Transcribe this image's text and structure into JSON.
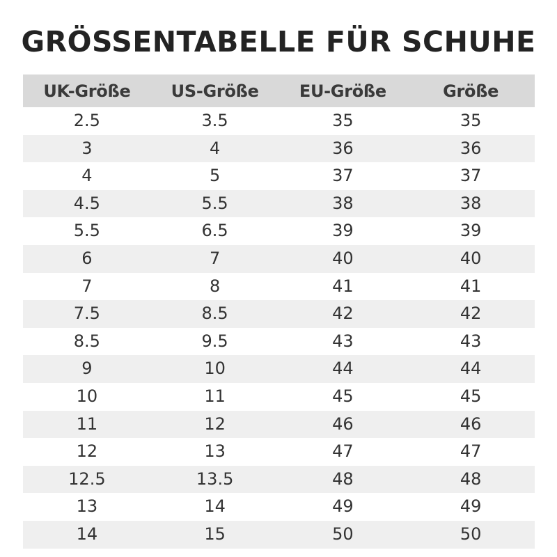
{
  "title": "GRÖSSENTABELLE FÜR SCHUHE",
  "table": {
    "headers": [
      "UK-Größe",
      "US-Größe",
      "EU-Größe",
      "Größe"
    ],
    "rows": [
      [
        "2.5",
        "3.5",
        "35",
        "35"
      ],
      [
        "3",
        "4",
        "36",
        "36"
      ],
      [
        "4",
        "5",
        "37",
        "37"
      ],
      [
        "4.5",
        "5.5",
        "38",
        "38"
      ],
      [
        "5.5",
        "6.5",
        "39",
        "39"
      ],
      [
        "6",
        "7",
        "40",
        "40"
      ],
      [
        "7",
        "8",
        "41",
        "41"
      ],
      [
        "7.5",
        "8.5",
        "42",
        "42"
      ],
      [
        "8.5",
        "9.5",
        "43",
        "43"
      ],
      [
        "9",
        "10",
        "44",
        "44"
      ],
      [
        "10",
        "11",
        "45",
        "45"
      ],
      [
        "11",
        "12",
        "46",
        "46"
      ],
      [
        "12",
        "13",
        "47",
        "47"
      ],
      [
        "12.5",
        "13.5",
        "48",
        "48"
      ],
      [
        "13",
        "14",
        "49",
        "49"
      ],
      [
        "14",
        "15",
        "50",
        "50"
      ]
    ]
  },
  "colors": {
    "header_background": "#d9d9d9",
    "stripe_background": "#efefef",
    "text": "#333333"
  }
}
